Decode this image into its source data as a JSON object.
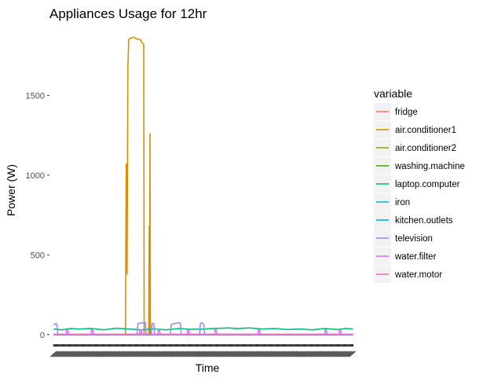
{
  "chart_data": {
    "type": "line",
    "title": "Appliances Usage for 12hr",
    "xlabel": "Time",
    "ylabel": "Power (W)",
    "ylim": [
      -70,
      1950
    ],
    "yticks": [
      0,
      500,
      1000,
      1500
    ],
    "x_count": 360,
    "grid": "off",
    "legend_position": "right",
    "legend_title": "variable",
    "series": [
      {
        "name": "fridge",
        "color": "#F8766D",
        "points": [
          [
            0,
            2
          ],
          [
            359,
            2
          ]
        ]
      },
      {
        "name": "air.conditioner1",
        "color": "#D89000",
        "points": [
          [
            0,
            0
          ],
          [
            86,
            0
          ],
          [
            87,
            1070
          ],
          [
            88,
            380
          ],
          [
            89,
            1680
          ],
          [
            90,
            1850
          ],
          [
            92,
            1858
          ],
          [
            96,
            1865
          ],
          [
            99,
            1855
          ],
          [
            102,
            1852
          ],
          [
            104,
            1848
          ],
          [
            106,
            1830
          ],
          [
            107,
            1825
          ],
          [
            108,
            1820
          ],
          [
            108.5,
            0
          ],
          [
            114,
            0
          ],
          [
            114.5,
            680
          ],
          [
            115,
            0
          ],
          [
            115.5,
            1260
          ],
          [
            116,
            0
          ],
          [
            359,
            0
          ]
        ]
      },
      {
        "name": "air.conditioner2",
        "color": "#A3A500",
        "points": [
          [
            0,
            0
          ],
          [
            359,
            0
          ]
        ]
      },
      {
        "name": "washing.machine",
        "color": "#39B600",
        "points": [
          [
            0,
            0
          ],
          [
            359,
            0
          ]
        ]
      },
      {
        "name": "laptop.computer",
        "color": "#00BF7D",
        "points": [
          [
            0,
            35
          ],
          [
            10,
            30
          ],
          [
            20,
            38
          ],
          [
            30,
            35
          ],
          [
            45,
            38
          ],
          [
            60,
            30
          ],
          [
            75,
            40
          ],
          [
            90,
            35
          ],
          [
            105,
            30
          ],
          [
            120,
            36
          ],
          [
            135,
            30
          ],
          [
            150,
            38
          ],
          [
            165,
            33
          ],
          [
            180,
            35
          ],
          [
            190,
            38
          ],
          [
            200,
            40
          ],
          [
            210,
            42
          ],
          [
            220,
            38
          ],
          [
            235,
            42
          ],
          [
            250,
            35
          ],
          [
            265,
            38
          ],
          [
            280,
            32
          ],
          [
            295,
            35
          ],
          [
            310,
            30
          ],
          [
            325,
            38
          ],
          [
            340,
            32
          ],
          [
            350,
            38
          ],
          [
            359,
            35
          ]
        ]
      },
      {
        "name": "iron",
        "color": "#00BFC4",
        "points": [
          [
            0,
            0
          ],
          [
            359,
            0
          ]
        ]
      },
      {
        "name": "kitchen.outlets",
        "color": "#00B0F6",
        "points": [
          [
            0,
            0
          ],
          [
            359,
            0
          ]
        ]
      },
      {
        "name": "television",
        "color": "#9590FF",
        "points": [
          [
            0,
            60
          ],
          [
            3,
            70
          ],
          [
            4,
            60
          ],
          [
            5,
            0
          ],
          [
            100,
            0
          ],
          [
            101,
            70
          ],
          [
            110,
            75
          ],
          [
            111,
            0
          ],
          [
            117,
            0
          ],
          [
            118,
            70
          ],
          [
            120,
            70
          ],
          [
            121,
            0
          ],
          [
            140,
            0
          ],
          [
            141,
            65
          ],
          [
            150,
            75
          ],
          [
            152,
            70
          ],
          [
            153,
            0
          ],
          [
            175,
            0
          ],
          [
            176,
            70
          ],
          [
            178,
            75
          ],
          [
            180,
            60
          ],
          [
            181,
            0
          ],
          [
            359,
            0
          ]
        ]
      },
      {
        "name": "water.filter",
        "color": "#E76BF3",
        "points": [
          [
            0,
            0
          ],
          [
            15,
            0
          ],
          [
            15.5,
            30
          ],
          [
            17,
            30
          ],
          [
            17.5,
            0
          ],
          [
            45,
            0
          ],
          [
            45.5,
            30
          ],
          [
            47,
            30
          ],
          [
            47.5,
            0
          ],
          [
            103,
            0
          ],
          [
            103.5,
            30
          ],
          [
            105,
            30
          ],
          [
            105.5,
            0
          ],
          [
            125,
            0
          ],
          [
            125.5,
            30
          ],
          [
            127,
            30
          ],
          [
            127.5,
            0
          ],
          [
            160,
            0
          ],
          [
            160.5,
            30
          ],
          [
            162,
            30
          ],
          [
            162.5,
            0
          ],
          [
            193,
            0
          ],
          [
            193.5,
            30
          ],
          [
            195,
            30
          ],
          [
            195.5,
            0
          ],
          [
            245,
            0
          ],
          [
            245.5,
            30
          ],
          [
            247,
            30
          ],
          [
            247.5,
            0
          ],
          [
            325,
            0
          ],
          [
            325.5,
            30
          ],
          [
            327,
            30
          ],
          [
            327.5,
            0
          ],
          [
            342,
            0
          ],
          [
            342.5,
            30
          ],
          [
            344,
            30
          ],
          [
            344.5,
            0
          ],
          [
            359,
            0
          ]
        ]
      },
      {
        "name": "water.motor",
        "color": "#FF62BC",
        "points": [
          [
            0,
            2
          ],
          [
            359,
            2
          ]
        ]
      }
    ]
  }
}
